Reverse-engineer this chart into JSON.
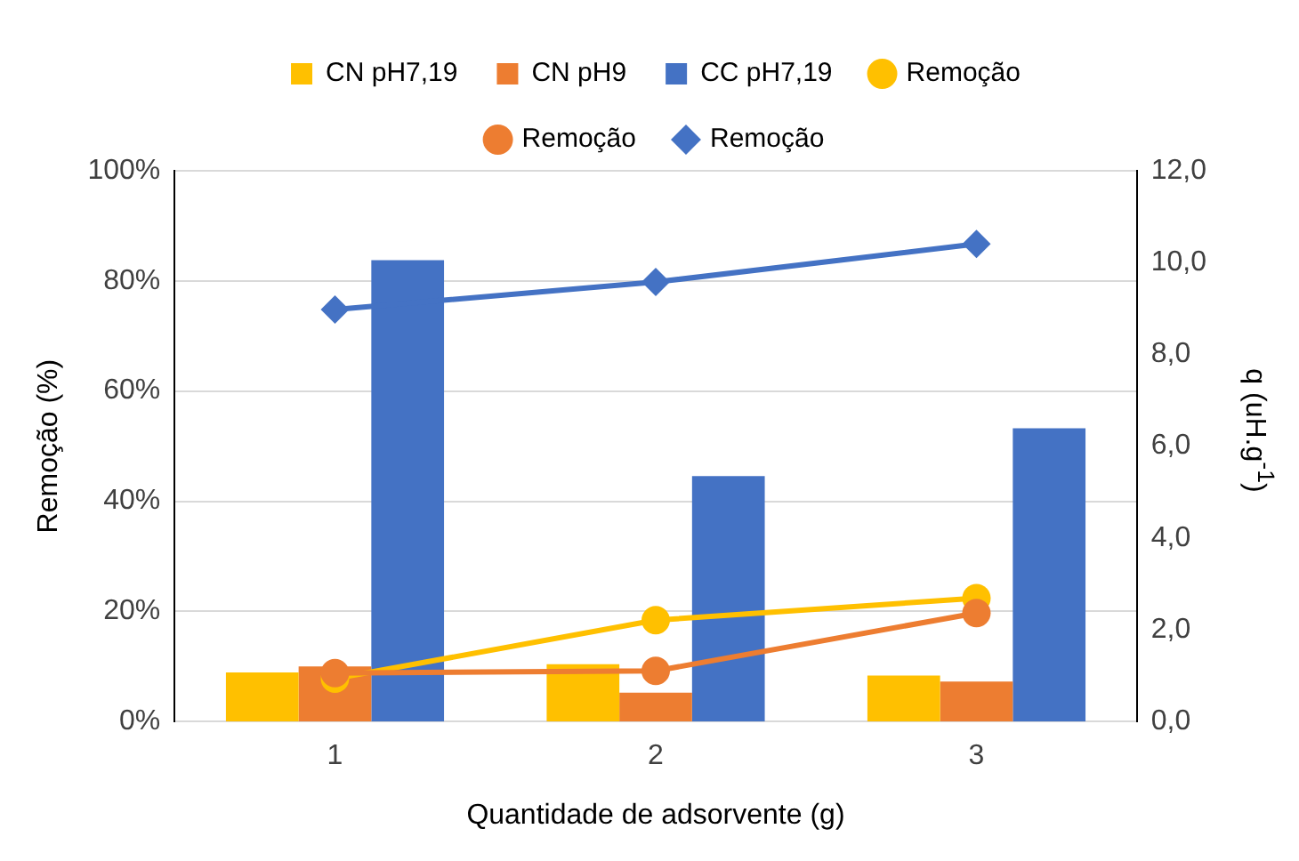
{
  "chart_data": {
    "type": "bar",
    "xlabel": "Quantidade de adsorvente (g)",
    "ylabel": "Remoção (%)",
    "y2label": "q (uH.g$^{-1}$)",
    "categories": [
      "1",
      "2",
      "3"
    ],
    "series": [
      {
        "name": "CN pH7,19",
        "axis": "y2",
        "color": "#ffc000",
        "values": [
          1.07,
          1.25,
          1.0
        ]
      },
      {
        "name": "CN pH9",
        "axis": "y2",
        "color": "#ed7d31",
        "values": [
          1.2,
          0.63,
          0.87
        ]
      },
      {
        "name": "CC pH7,19",
        "axis": "y2",
        "color": "#4472c4",
        "values": [
          10.05,
          5.35,
          6.39
        ]
      },
      {
        "name": "Remoção",
        "type": "line",
        "color": "#ffc000",
        "marker": "circle",
        "values": [
          7.8,
          18.4,
          22.4
        ]
      },
      {
        "name": "Remoção",
        "type": "line",
        "color": "#ed7d31",
        "marker": "circle",
        "values": [
          8.8,
          9.2,
          19.7
        ]
      },
      {
        "name": "Remoção",
        "type": "line",
        "color": "#4472c4",
        "marker": "diamond",
        "values": [
          74.8,
          79.8,
          86.7
        ]
      }
    ],
    "ylim": [
      0,
      100
    ],
    "yticks": [
      {
        "value": 0,
        "label": "0%"
      },
      {
        "value": 20,
        "label": "20%"
      },
      {
        "value": 40,
        "label": "40%"
      },
      {
        "value": 60,
        "label": "60%"
      },
      {
        "value": 80,
        "label": "80%"
      },
      {
        "value": 100,
        "label": "100%"
      }
    ],
    "y2lim": [
      0,
      12
    ],
    "y2ticks": [
      {
        "value": 0,
        "label": "0,0"
      },
      {
        "value": 2,
        "label": "2,0"
      },
      {
        "value": 4,
        "label": "4,0"
      },
      {
        "value": 6,
        "label": "6,0"
      },
      {
        "value": 8,
        "label": "8,0"
      },
      {
        "value": 10,
        "label": "10,0"
      },
      {
        "value": 12,
        "label": "12,0"
      }
    ],
    "grid": "y",
    "legend": "top"
  }
}
